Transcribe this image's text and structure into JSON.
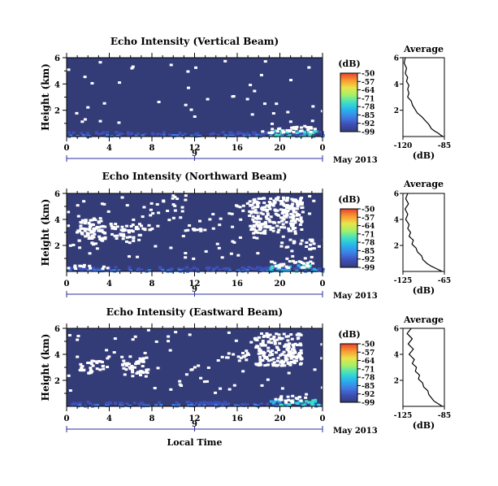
{
  "colors": {
    "background": "#343c78",
    "colorbar": [
      "#343c78",
      "#3e4fb8",
      "#3f7fe6",
      "#27b4ec",
      "#3fe0c6",
      "#a2f06a",
      "#eae34a",
      "#f99a33",
      "#e8412c"
    ],
    "axis": "#000000",
    "profile_line": "#000000"
  },
  "shared": {
    "time_ticks": [
      "0",
      "4",
      "8",
      "12",
      "16",
      "20",
      "0"
    ],
    "date_day": "9",
    "date_month_year": "May 2013",
    "height_label": "Height (km)",
    "height_ticks": [
      "6",
      "4",
      "2"
    ],
    "colorbar_unit": "(dB)",
    "colorbar_ticks": [
      "-50",
      "-57",
      "-64",
      "-71",
      "-78",
      "-85",
      "-92",
      "-99"
    ],
    "average_title": "Average",
    "average_xlabel": "(dB)",
    "average_yticks": [
      "6",
      "4",
      "2"
    ],
    "xlabel": "Local Time"
  },
  "chart_data": [
    {
      "type": "heatmap",
      "title": "Echo Intensity (Vertical Beam)",
      "x_unit": "hour",
      "xlim": [
        0,
        24
      ],
      "ylim": [
        0,
        6
      ],
      "colorbar_range": [
        -99,
        -50
      ],
      "profile": {
        "type": "line",
        "title": "Average",
        "xticks": [
          "-120",
          "-85"
        ],
        "xlim": [
          -120,
          -85
        ],
        "points": [
          [
            -118,
            6.0
          ],
          [
            -119,
            5.6
          ],
          [
            -117,
            5.2
          ],
          [
            -118,
            4.8
          ],
          [
            -116,
            4.5
          ],
          [
            -117,
            4.2
          ],
          [
            -115,
            3.9
          ],
          [
            -116,
            3.6
          ],
          [
            -115,
            3.3
          ],
          [
            -116,
            3.0
          ],
          [
            -113,
            2.7
          ],
          [
            -112,
            2.4
          ],
          [
            -110,
            2.1
          ],
          [
            -108,
            1.8
          ],
          [
            -104,
            1.5
          ],
          [
            -101,
            1.2
          ],
          [
            -98,
            0.9
          ],
          [
            -96,
            0.6
          ],
          [
            -93,
            0.4
          ],
          [
            -90,
            0.25
          ],
          [
            -88,
            0.1
          ],
          [
            -86,
            0.0
          ]
        ]
      }
    },
    {
      "type": "heatmap",
      "title": "Echo Intensity (Northward Beam)",
      "x_unit": "hour",
      "xlim": [
        0,
        24
      ],
      "ylim": [
        0,
        6
      ],
      "colorbar_range": [
        -99,
        -50
      ],
      "profile": {
        "type": "line",
        "title": "Average",
        "xticks": [
          "-125",
          "-65"
        ],
        "xlim": [
          -125,
          -65
        ],
        "points": [
          [
            -118,
            6.0
          ],
          [
            -121,
            5.6
          ],
          [
            -117,
            5.2
          ],
          [
            -122,
            4.8
          ],
          [
            -118,
            4.4
          ],
          [
            -121,
            4.0
          ],
          [
            -116,
            3.6
          ],
          [
            -118,
            3.3
          ],
          [
            -114,
            3.0
          ],
          [
            -116,
            2.7
          ],
          [
            -110,
            2.4
          ],
          [
            -112,
            2.1
          ],
          [
            -106,
            1.8
          ],
          [
            -104,
            1.5
          ],
          [
            -98,
            1.2
          ],
          [
            -96,
            0.9
          ],
          [
            -90,
            0.6
          ],
          [
            -84,
            0.4
          ],
          [
            -78,
            0.25
          ],
          [
            -72,
            0.1
          ],
          [
            -68,
            0.0
          ]
        ]
      }
    },
    {
      "type": "heatmap",
      "title": "Echo Intensity (Eastward Beam)",
      "x_unit": "hour",
      "xlim": [
        0,
        24
      ],
      "ylim": [
        0,
        6
      ],
      "colorbar_range": [
        -99,
        -50
      ],
      "profile": {
        "type": "line",
        "title": "Average",
        "xticks": [
          "-125",
          "-85"
        ],
        "xlim": [
          -125,
          -85
        ],
        "points": [
          [
            -117,
            6.0
          ],
          [
            -121,
            5.6
          ],
          [
            -116,
            5.2
          ],
          [
            -120,
            4.8
          ],
          [
            -115,
            4.4
          ],
          [
            -119,
            4.0
          ],
          [
            -114,
            3.6
          ],
          [
            -116,
            3.3
          ],
          [
            -112,
            3.0
          ],
          [
            -113,
            2.7
          ],
          [
            -109,
            2.4
          ],
          [
            -110,
            2.1
          ],
          [
            -106,
            1.8
          ],
          [
            -105,
            1.5
          ],
          [
            -101,
            1.2
          ],
          [
            -100,
            0.9
          ],
          [
            -97,
            0.6
          ],
          [
            -95,
            0.4
          ],
          [
            -92,
            0.25
          ],
          [
            -89,
            0.1
          ],
          [
            -87,
            0.0
          ]
        ]
      }
    }
  ]
}
